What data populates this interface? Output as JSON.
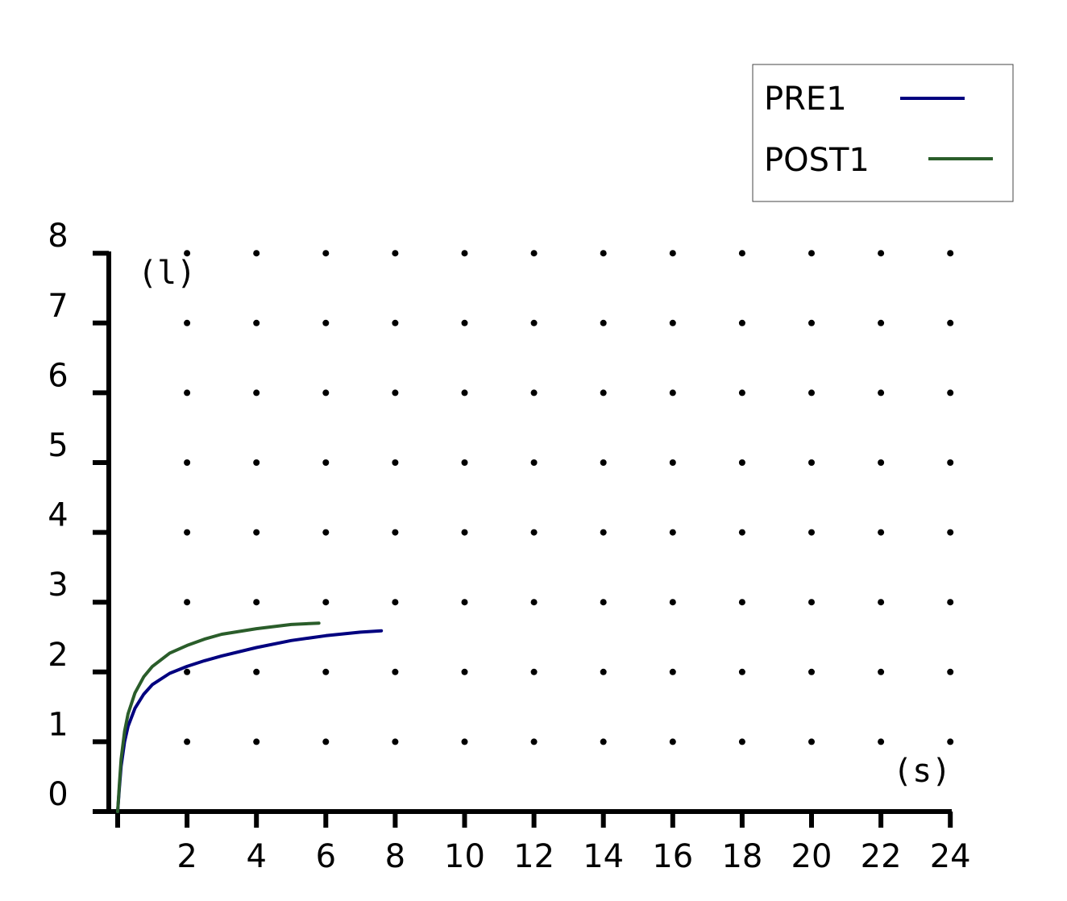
{
  "chart_data": {
    "type": "line",
    "title": "",
    "xlabel": "(s)",
    "ylabel": "(l)",
    "xlim": [
      0,
      24
    ],
    "ylim": [
      0,
      8
    ],
    "x_ticks": [
      2,
      4,
      6,
      8,
      10,
      12,
      14,
      16,
      18,
      20,
      22,
      24
    ],
    "y_ticks": [
      0,
      1,
      2,
      3,
      4,
      5,
      6,
      7,
      8
    ],
    "grid": "dotted",
    "legend_position": "top-right",
    "series": [
      {
        "name": "PRE1",
        "color": "#00007f",
        "x": [
          0,
          0.05,
          0.1,
          0.2,
          0.3,
          0.5,
          0.75,
          1.0,
          1.5,
          2.0,
          2.5,
          3.0,
          4.0,
          5.0,
          6.0,
          7.0,
          7.6
        ],
        "y": [
          0,
          0.35,
          0.65,
          1.0,
          1.22,
          1.48,
          1.68,
          1.82,
          1.98,
          2.08,
          2.16,
          2.23,
          2.35,
          2.45,
          2.52,
          2.57,
          2.59
        ]
      },
      {
        "name": "POST1",
        "color": "#2a5d2a",
        "x": [
          0,
          0.05,
          0.1,
          0.2,
          0.3,
          0.5,
          0.75,
          1.0,
          1.5,
          2.0,
          2.5,
          3.0,
          4.0,
          5.0,
          5.8
        ],
        "y": [
          0,
          0.4,
          0.75,
          1.15,
          1.4,
          1.7,
          1.93,
          2.08,
          2.27,
          2.38,
          2.47,
          2.54,
          2.62,
          2.68,
          2.7
        ]
      }
    ]
  }
}
